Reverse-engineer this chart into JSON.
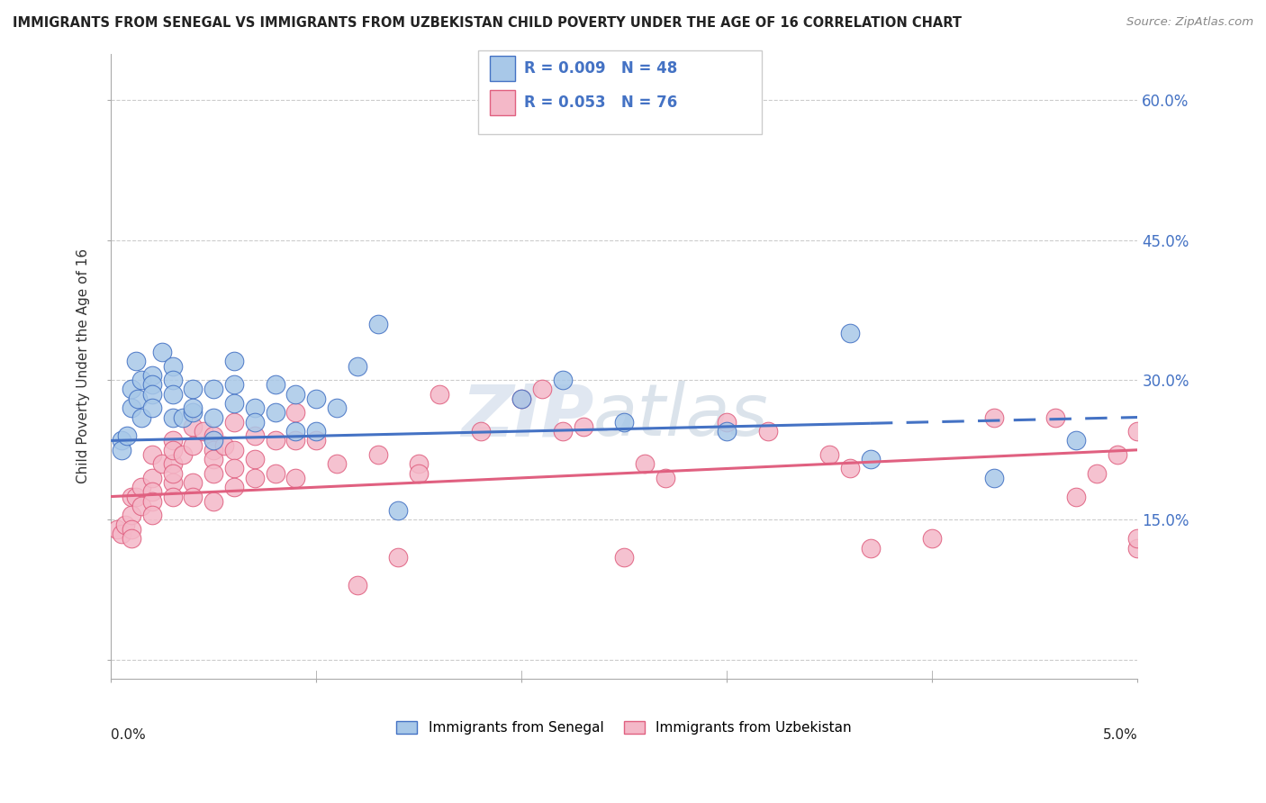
{
  "title": "IMMIGRANTS FROM SENEGAL VS IMMIGRANTS FROM UZBEKISTAN CHILD POVERTY UNDER THE AGE OF 16 CORRELATION CHART",
  "source": "Source: ZipAtlas.com",
  "ylabel": "Child Poverty Under the Age of 16",
  "y_ticks": [
    0.0,
    0.15,
    0.3,
    0.45,
    0.6
  ],
  "y_tick_labels": [
    "",
    "15.0%",
    "30.0%",
    "45.0%",
    "60.0%"
  ],
  "x_range": [
    0.0,
    0.05
  ],
  "y_range": [
    -0.02,
    0.65
  ],
  "legend_label1": "Immigrants from Senegal",
  "legend_label2": "Immigrants from Uzbekistan",
  "R1": 0.009,
  "N1": 48,
  "R2": 0.053,
  "N2": 76,
  "color_blue": "#a8c8e8",
  "color_pink": "#f4b8c8",
  "color_blue_line": "#4472c4",
  "color_pink_line": "#e06080",
  "watermark_zip": "ZIP",
  "watermark_atlas": "atlas",
  "senegal_x": [
    0.0005,
    0.0005,
    0.0008,
    0.001,
    0.001,
    0.0012,
    0.0013,
    0.0015,
    0.0015,
    0.002,
    0.002,
    0.002,
    0.002,
    0.0025,
    0.003,
    0.003,
    0.003,
    0.003,
    0.0035,
    0.004,
    0.004,
    0.004,
    0.005,
    0.005,
    0.005,
    0.006,
    0.006,
    0.006,
    0.007,
    0.007,
    0.008,
    0.008,
    0.009,
    0.009,
    0.01,
    0.01,
    0.011,
    0.012,
    0.013,
    0.02,
    0.022,
    0.025,
    0.03,
    0.036,
    0.037,
    0.043,
    0.047,
    0.014
  ],
  "senegal_y": [
    0.235,
    0.225,
    0.24,
    0.29,
    0.27,
    0.32,
    0.28,
    0.3,
    0.26,
    0.305,
    0.295,
    0.285,
    0.27,
    0.33,
    0.315,
    0.3,
    0.285,
    0.26,
    0.26,
    0.265,
    0.29,
    0.27,
    0.29,
    0.26,
    0.235,
    0.295,
    0.275,
    0.32,
    0.27,
    0.255,
    0.295,
    0.265,
    0.285,
    0.245,
    0.28,
    0.245,
    0.27,
    0.315,
    0.36,
    0.28,
    0.3,
    0.255,
    0.245,
    0.35,
    0.215,
    0.195,
    0.235,
    0.16
  ],
  "uzbekistan_x": [
    0.0003,
    0.0005,
    0.0007,
    0.001,
    0.001,
    0.001,
    0.001,
    0.0012,
    0.0015,
    0.0015,
    0.002,
    0.002,
    0.002,
    0.002,
    0.002,
    0.0025,
    0.003,
    0.003,
    0.003,
    0.003,
    0.003,
    0.003,
    0.0035,
    0.004,
    0.004,
    0.004,
    0.004,
    0.0045,
    0.005,
    0.005,
    0.005,
    0.005,
    0.005,
    0.0055,
    0.006,
    0.006,
    0.006,
    0.006,
    0.007,
    0.007,
    0.007,
    0.008,
    0.008,
    0.009,
    0.009,
    0.009,
    0.01,
    0.011,
    0.012,
    0.013,
    0.014,
    0.015,
    0.016,
    0.018,
    0.02,
    0.021,
    0.022,
    0.023,
    0.025,
    0.026,
    0.027,
    0.03,
    0.032,
    0.035,
    0.036,
    0.037,
    0.04,
    0.043,
    0.046,
    0.047,
    0.048,
    0.049,
    0.05,
    0.05,
    0.05,
    0.015
  ],
  "uzbekistan_y": [
    0.14,
    0.135,
    0.145,
    0.175,
    0.155,
    0.14,
    0.13,
    0.175,
    0.185,
    0.165,
    0.195,
    0.22,
    0.18,
    0.17,
    0.155,
    0.21,
    0.21,
    0.19,
    0.235,
    0.225,
    0.2,
    0.175,
    0.22,
    0.25,
    0.23,
    0.19,
    0.175,
    0.245,
    0.24,
    0.225,
    0.215,
    0.2,
    0.17,
    0.23,
    0.255,
    0.225,
    0.205,
    0.185,
    0.24,
    0.215,
    0.195,
    0.235,
    0.2,
    0.265,
    0.235,
    0.195,
    0.235,
    0.21,
    0.08,
    0.22,
    0.11,
    0.21,
    0.285,
    0.245,
    0.28,
    0.29,
    0.245,
    0.25,
    0.11,
    0.21,
    0.195,
    0.255,
    0.245,
    0.22,
    0.205,
    0.12,
    0.13,
    0.26,
    0.26,
    0.175,
    0.2,
    0.22,
    0.12,
    0.13,
    0.245,
    0.2
  ]
}
